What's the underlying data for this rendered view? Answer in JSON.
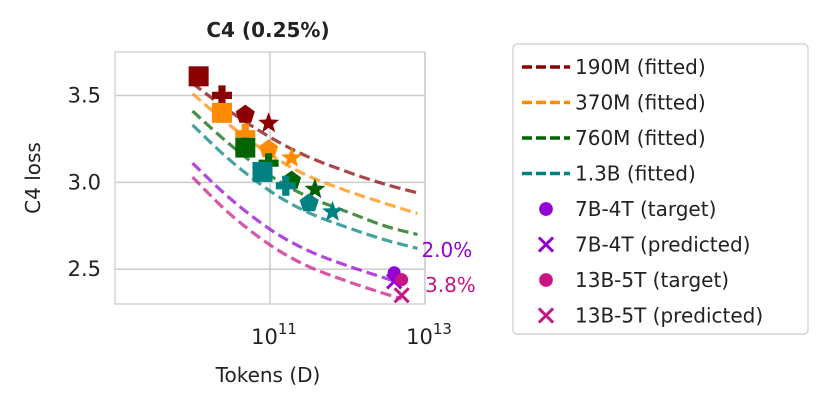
{
  "chart_data": {
    "type": "scatter",
    "title": "C4 (0.25%)",
    "xlabel": "Tokens (D)",
    "ylabel": "C4 loss",
    "xscale": "log",
    "xlim": [
      1000000000.0,
      10000000000000.0
    ],
    "ylim": [
      2.3,
      3.75
    ],
    "x_ticks": [
      {
        "value": 100000000000.0,
        "base": "10",
        "exp": "11"
      },
      {
        "value": 10000000000000.0,
        "base": "10",
        "exp": "13"
      }
    ],
    "y_ticks": [
      {
        "value": 2.5,
        "label": "2.5"
      },
      {
        "value": 3.0,
        "label": "3.0"
      },
      {
        "value": 3.5,
        "label": "3.5"
      }
    ],
    "grid": true,
    "legend_position": "outside-right",
    "fitted_curves": [
      {
        "name": "190M (fitted)",
        "color": "#8b0000",
        "x": [
          10000000000.0,
          30000000000.0,
          100000000000.0,
          300000000000.0,
          1000000000000.0,
          3000000000000.0,
          8000000000000.0
        ],
        "y": [
          3.57,
          3.41,
          3.26,
          3.15,
          3.06,
          2.99,
          2.94
        ]
      },
      {
        "name": "370M (fitted)",
        "color": "#ff8c00",
        "x": [
          10000000000.0,
          30000000000.0,
          100000000000.0,
          300000000000.0,
          1000000000000.0,
          3000000000000.0,
          8000000000000.0
        ],
        "y": [
          3.51,
          3.33,
          3.16,
          3.04,
          2.95,
          2.88,
          2.82
        ]
      },
      {
        "name": "760M (fitted)",
        "color": "#006400",
        "x": [
          10000000000.0,
          30000000000.0,
          100000000000.0,
          300000000000.0,
          1000000000000.0,
          3000000000000.0,
          8000000000000.0
        ],
        "y": [
          3.41,
          3.22,
          3.04,
          2.92,
          2.83,
          2.75,
          2.7
        ]
      },
      {
        "name": "1.3B (fitted)",
        "color": "#008080",
        "x": [
          10000000000.0,
          30000000000.0,
          100000000000.0,
          300000000000.0,
          1000000000000.0,
          3000000000000.0,
          8000000000000.0
        ],
        "y": [
          3.33,
          3.13,
          2.95,
          2.83,
          2.74,
          2.67,
          2.62
        ]
      },
      {
        "name": "",
        "color": "#9400d3",
        "x": [
          10000000000.0,
          30000000000.0,
          100000000000.0,
          300000000000.0,
          1000000000000.0,
          3000000000000.0,
          4000000000000.0
        ],
        "y": [
          3.11,
          2.91,
          2.73,
          2.61,
          2.52,
          2.45,
          2.43
        ]
      },
      {
        "name": "",
        "color": "#c71585",
        "x": [
          10000000000.0,
          30000000000.0,
          100000000000.0,
          300000000000.0,
          1000000000000.0,
          3000000000000.0,
          5000000000000.0
        ],
        "y": [
          3.03,
          2.82,
          2.64,
          2.52,
          2.43,
          2.36,
          2.33
        ]
      }
    ],
    "points": [
      {
        "series": "190M",
        "color": "#8b0000",
        "x": 12000000000.0,
        "y": 3.61,
        "marker": "square"
      },
      {
        "series": "190M",
        "color": "#8b0000",
        "x": 24000000000.0,
        "y": 3.5,
        "marker": "plus"
      },
      {
        "series": "190M",
        "color": "#8b0000",
        "x": 48000000000.0,
        "y": 3.39,
        "marker": "pentagon"
      },
      {
        "series": "190M",
        "color": "#8b0000",
        "x": 96000000000.0,
        "y": 3.34,
        "marker": "star"
      },
      {
        "series": "370M",
        "color": "#ff8c00",
        "x": 24000000000.0,
        "y": 3.4,
        "marker": "square"
      },
      {
        "series": "370M",
        "color": "#ff8c00",
        "x": 48000000000.0,
        "y": 3.28,
        "marker": "plus"
      },
      {
        "series": "370M",
        "color": "#ff8c00",
        "x": 96000000000.0,
        "y": 3.19,
        "marker": "pentagon"
      },
      {
        "series": "370M",
        "color": "#ff8c00",
        "x": 190000000000.0,
        "y": 3.14,
        "marker": "star"
      },
      {
        "series": "760M",
        "color": "#006400",
        "x": 48000000000.0,
        "y": 3.2,
        "marker": "square"
      },
      {
        "series": "760M",
        "color": "#006400",
        "x": 96000000000.0,
        "y": 3.11,
        "marker": "plus"
      },
      {
        "series": "760M",
        "color": "#006400",
        "x": 190000000000.0,
        "y": 3.01,
        "marker": "pentagon"
      },
      {
        "series": "760M",
        "color": "#006400",
        "x": 380000000000.0,
        "y": 2.96,
        "marker": "star"
      },
      {
        "series": "1.3B",
        "color": "#008080",
        "x": 80000000000.0,
        "y": 3.06,
        "marker": "square"
      },
      {
        "series": "1.3B",
        "color": "#008080",
        "x": 160000000000.0,
        "y": 2.98,
        "marker": "plus"
      },
      {
        "series": "1.3B",
        "color": "#008080",
        "x": 320000000000.0,
        "y": 2.88,
        "marker": "pentagon"
      },
      {
        "series": "1.3B",
        "color": "#008080",
        "x": 640000000000.0,
        "y": 2.83,
        "marker": "star"
      },
      {
        "series": "7B-4T (target)",
        "color": "#9400d3",
        "x": 4000000000000.0,
        "y": 2.48,
        "marker": "circle"
      },
      {
        "series": "7B-4T (predicted)",
        "color": "#9400d3",
        "x": 4000000000000.0,
        "y": 2.43,
        "marker": "x"
      },
      {
        "series": "13B-5T (target)",
        "color": "#c71585",
        "x": 5000000000000.0,
        "y": 2.44,
        "marker": "circle"
      },
      {
        "series": "13B-5T (predicted)",
        "color": "#c71585",
        "x": 5000000000000.0,
        "y": 2.35,
        "marker": "x"
      }
    ],
    "annotations": [
      {
        "text": "2.0%",
        "color": "#9400d3",
        "x": 9000000000000.0,
        "y": 2.57
      },
      {
        "text": "3.8%",
        "color": "#c71585",
        "x": 10000000000000.0,
        "y": 2.37
      }
    ],
    "legend": [
      {
        "label": "190M (fitted)",
        "kind": "dashed",
        "color": "#8b0000"
      },
      {
        "label": "370M (fitted)",
        "kind": "dashed",
        "color": "#ff8c00"
      },
      {
        "label": "760M (fitted)",
        "kind": "dashed",
        "color": "#006400"
      },
      {
        "label": "1.3B (fitted)",
        "kind": "dashed",
        "color": "#008080"
      },
      {
        "label": "7B-4T (target)",
        "kind": "circle",
        "color": "#9400d3"
      },
      {
        "label": "7B-4T (predicted)",
        "kind": "x",
        "color": "#9400d3"
      },
      {
        "label": "13B-5T (target)",
        "kind": "circle",
        "color": "#c71585"
      },
      {
        "label": "13B-5T (predicted)",
        "kind": "x",
        "color": "#c71585"
      }
    ]
  }
}
